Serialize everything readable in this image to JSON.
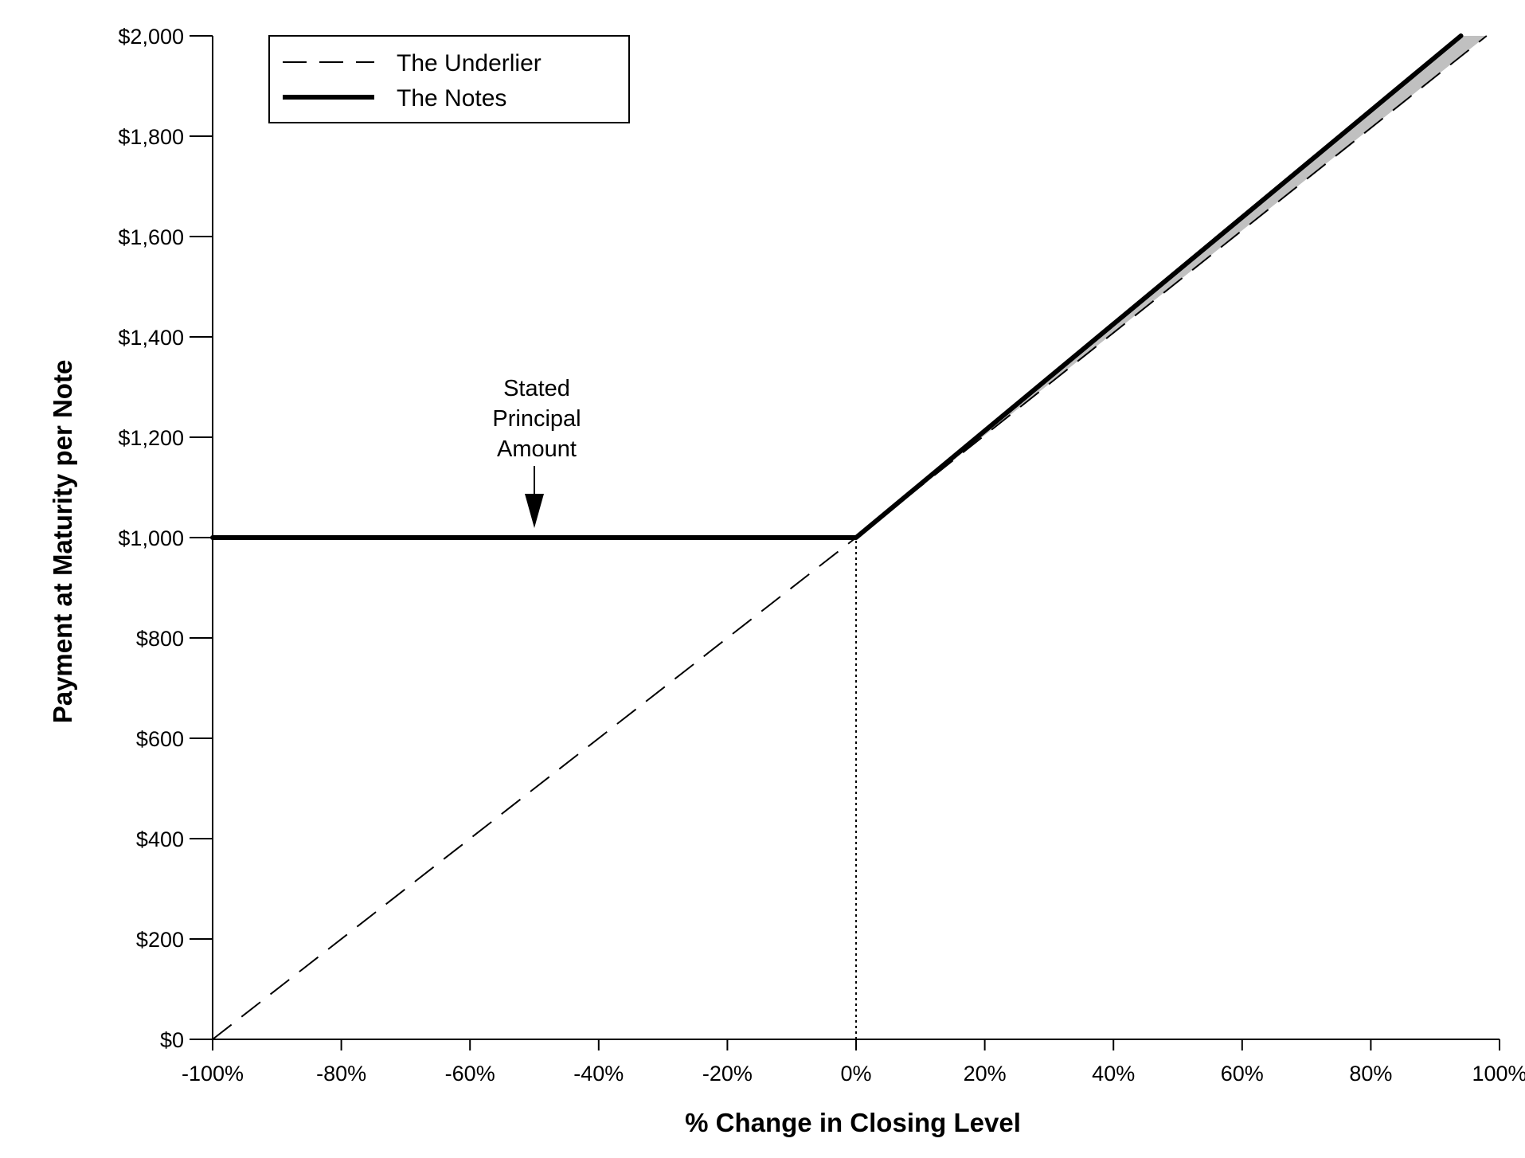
{
  "chart_data": {
    "type": "line",
    "title": "",
    "xlabel": "% Change in Closing Level",
    "ylabel": "Payment at Maturity per Note",
    "xlim": [
      -100,
      100
    ],
    "ylim": [
      0,
      2000
    ],
    "x_ticks": [
      -100,
      -80,
      -60,
      -40,
      -20,
      0,
      20,
      40,
      60,
      80,
      100
    ],
    "x_tick_labels": [
      "-100%",
      "-80%",
      "-60%",
      "-40%",
      "-20%",
      "0%",
      "20%",
      "40%",
      "60%",
      "80%",
      "100%"
    ],
    "y_ticks": [
      0,
      200,
      400,
      600,
      800,
      1000,
      1200,
      1400,
      1600,
      1800,
      2000
    ],
    "y_tick_labels": [
      "$0",
      "$200",
      "$400",
      "$600",
      "$800",
      "$1,000",
      "$1,200",
      "$1,400",
      "$1,600",
      "$1,800",
      "$2,000"
    ],
    "grid": false,
    "legend_position": "top-left",
    "series": [
      {
        "name": "The Underlier",
        "style": "dashed",
        "color": "#000000",
        "points": [
          [
            -100,
            0
          ],
          [
            0,
            1000
          ],
          [
            98,
            2000
          ]
        ]
      },
      {
        "name": "The Notes",
        "style": "solid-thick",
        "color": "#000000",
        "points": [
          [
            -100,
            1000
          ],
          [
            0,
            1000
          ],
          [
            94,
            2000
          ]
        ]
      }
    ],
    "shaded_region_color": "#c0c0c0",
    "reference_line": {
      "x": 0,
      "from_y": 0,
      "to_y": 1000,
      "style": "dotted"
    },
    "annotation": {
      "lines": [
        "Stated",
        "Principal",
        "Amount"
      ],
      "points_to": [
        -50,
        1000
      ]
    }
  }
}
